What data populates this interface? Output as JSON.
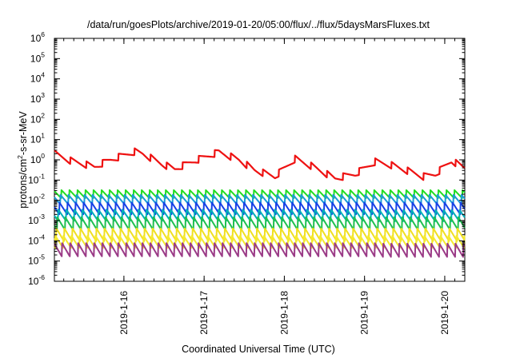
{
  "chart_data": {
    "type": "line",
    "title": "/data/run/goesPlots/archive/2019-01-20/05:00/flux/../flux/5daysMarsFluxes.txt",
    "xlabel": "Coordinated Universal Time (UTC)",
    "ylabel": {
      "base": "protons/cm",
      "sup": "2",
      "rest": "-s-sr-MeV"
    },
    "y_scale": "log",
    "ylim": [
      1e-06,
      1000000.0
    ],
    "y_ticks": [
      {
        "base": "10",
        "exp": "-6"
      },
      {
        "base": "10",
        "exp": "-5"
      },
      {
        "base": "10",
        "exp": "-4"
      },
      {
        "base": "10",
        "exp": "-3"
      },
      {
        "base": "10",
        "exp": "-2"
      },
      {
        "base": "10",
        "exp": "-1"
      },
      {
        "base": "10",
        "exp": "0"
      },
      {
        "base": "10",
        "exp": "1"
      },
      {
        "base": "10",
        "exp": "2"
      },
      {
        "base": "10",
        "exp": "3"
      },
      {
        "base": "10",
        "exp": "4"
      },
      {
        "base": "10",
        "exp": "5"
      },
      {
        "base": "10",
        "exp": "6"
      }
    ],
    "xlim": [
      "2019-01-15 03:12",
      "2019-01-20 06:00"
    ],
    "x_ticks": [
      "2019-1-16",
      "2019-1-17",
      "2019-1-18",
      "2019-1-19",
      "2019-1-20"
    ],
    "grid": false,
    "legend": "none",
    "series": [
      {
        "color": "#ee1111",
        "sawtooth": {
          "trend_x": [
            0,
            0.2,
            0.5,
            0.7,
            1.0,
            1.1,
            1.35,
            1.5,
            1.75,
            2.05,
            2.3,
            2.5,
            2.75,
            3.0,
            3.2,
            3.5,
            3.75,
            4.0,
            4.2,
            4.45,
            4.6,
            4.75,
            4.95,
            5.12
          ],
          "trend_y": [
            2.0,
            0.9,
            0.45,
            1.0,
            2.5,
            2.0,
            0.6,
            0.35,
            0.9,
            2.4,
            1.0,
            0.3,
            0.15,
            1.1,
            0.5,
            0.12,
            0.2,
            0.8,
            0.55,
            0.25,
            0.15,
            0.2,
            0.9,
            0.4
          ],
          "period": 0.2,
          "amp": 2.2
        }
      },
      {
        "color": "#22dd22",
        "sawtooth": {
          "level": 0.02,
          "period": 0.1,
          "amp": 2.6
        }
      },
      {
        "color": "#1a9bd8",
        "sawtooth": {
          "level": 0.011,
          "period": 0.1,
          "amp": 3.0
        }
      },
      {
        "color": "#1740e6",
        "sawtooth": {
          "level": 0.004,
          "period": 0.1,
          "amp": 4.0
        }
      },
      {
        "color": "#00b0b8",
        "sawtooth": {
          "level": 0.0018,
          "period": 0.1,
          "amp": 3.8
        }
      },
      {
        "color": "#20c050",
        "sawtooth": {
          "level": 0.0007,
          "period": 0.1,
          "amp": 4.5
        }
      },
      {
        "color": "#f0e020",
        "sawtooth": {
          "level": 0.0002,
          "period": 0.1,
          "amp": 4.5
        }
      },
      {
        "color": "#f5ea30",
        "sawtooth": {
          "level": 9e-05,
          "period": 0.1,
          "amp": 4.2
        }
      },
      {
        "color": "#9b3b87",
        "sawtooth": {
          "level": 3.5e-05,
          "period": 0.1,
          "amp": 4.8
        }
      }
    ]
  }
}
